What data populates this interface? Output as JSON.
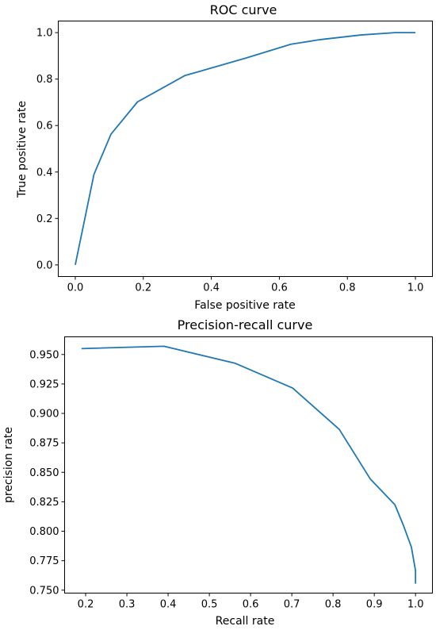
{
  "chart_data": [
    {
      "type": "line",
      "title": "ROC curve",
      "xlabel": "False positive rate",
      "ylabel": "True positive rate",
      "xlim": [
        -0.05,
        1.05
      ],
      "ylim": [
        -0.05,
        1.05
      ],
      "xticks": [
        0.0,
        0.2,
        0.4,
        0.6,
        0.8,
        1.0
      ],
      "xtick_labels": [
        "0.0",
        "0.2",
        "0.4",
        "0.6",
        "0.8",
        "1.0"
      ],
      "yticks": [
        0.0,
        0.2,
        0.4,
        0.6,
        0.8,
        1.0
      ],
      "ytick_labels": [
        "0.0",
        "0.2",
        "0.4",
        "0.6",
        "0.8",
        "1.0"
      ],
      "grid": false,
      "series": [
        {
          "color": "#1f77b4",
          "x": [
            0.0,
            0.055,
            0.105,
            0.183,
            0.322,
            0.5,
            0.634,
            0.72,
            0.84,
            0.94,
            1.0
          ],
          "y": [
            0.0,
            0.39,
            0.563,
            0.702,
            0.815,
            0.89,
            0.95,
            0.97,
            0.99,
            1.0,
            1.0
          ]
        }
      ]
    },
    {
      "type": "line",
      "title": "Precision-recall curve",
      "xlabel": "Recall rate",
      "ylabel": "precision rate",
      "xlim": [
        0.149,
        1.041
      ],
      "ylim": [
        0.7475,
        0.965
      ],
      "xticks": [
        0.2,
        0.3,
        0.4,
        0.5,
        0.6,
        0.7,
        0.8,
        0.9,
        1.0
      ],
      "xtick_labels": [
        "0.2",
        "0.3",
        "0.4",
        "0.5",
        "0.6",
        "0.7",
        "0.8",
        "0.9",
        "1.0"
      ],
      "yticks": [
        0.75,
        0.775,
        0.8,
        0.825,
        0.85,
        0.875,
        0.9,
        0.925,
        0.95
      ],
      "ytick_labels": [
        "0.750",
        "0.775",
        "0.800",
        "0.825",
        "0.850",
        "0.875",
        "0.900",
        "0.925",
        "0.950"
      ],
      "grid": false,
      "series": [
        {
          "color": "#1f77b4",
          "x": [
            0.19,
            0.39,
            0.563,
            0.702,
            0.815,
            0.89,
            0.95,
            0.97,
            0.99,
            0.998,
            1.0,
            1.0
          ],
          "y": [
            0.955,
            0.957,
            0.9425,
            0.9215,
            0.8865,
            0.8445,
            0.8225,
            0.8055,
            0.7865,
            0.7705,
            0.7665,
            0.7555
          ]
        }
      ]
    }
  ]
}
